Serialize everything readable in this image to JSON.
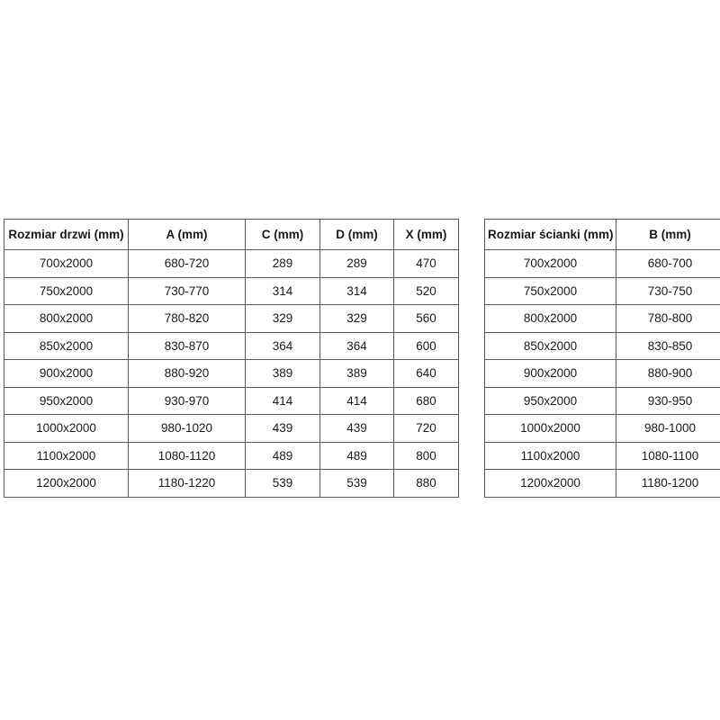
{
  "colors": {
    "background": "#ffffff",
    "table_border": "#595959",
    "text": "#1a1a1a"
  },
  "tables": [
    {
      "name": "door-dimensions-table",
      "headers": [
        "Rozmiar drzwi (mm)",
        "A (mm)",
        "C (mm)",
        "D (mm)",
        "X (mm)"
      ],
      "rows": [
        [
          "700x2000",
          "680-720",
          "289",
          "289",
          "470"
        ],
        [
          "750x2000",
          "730-770",
          "314",
          "314",
          "520"
        ],
        [
          "800x2000",
          "780-820",
          "329",
          "329",
          "560"
        ],
        [
          "850x2000",
          "830-870",
          "364",
          "364",
          "600"
        ],
        [
          "900x2000",
          "880-920",
          "389",
          "389",
          "640"
        ],
        [
          "950x2000",
          "930-970",
          "414",
          "414",
          "680"
        ],
        [
          "1000x2000",
          "980-1020",
          "439",
          "439",
          "720"
        ],
        [
          "1100x2000",
          "1080-1120",
          "489",
          "489",
          "800"
        ],
        [
          "1200x2000",
          "1180-1220",
          "539",
          "539",
          "880"
        ]
      ]
    },
    {
      "name": "wall-dimensions-table",
      "headers": [
        "Rozmiar ścianki (mm)",
        "B (mm)"
      ],
      "rows": [
        [
          "700x2000",
          "680-700"
        ],
        [
          "750x2000",
          "730-750"
        ],
        [
          "800x2000",
          "780-800"
        ],
        [
          "850x2000",
          "830-850"
        ],
        [
          "900x2000",
          "880-900"
        ],
        [
          "950x2000",
          "930-950"
        ],
        [
          "1000x2000",
          "980-1000"
        ],
        [
          "1100x2000",
          "1080-1100"
        ],
        [
          "1200x2000",
          "1180-1200"
        ]
      ]
    }
  ]
}
